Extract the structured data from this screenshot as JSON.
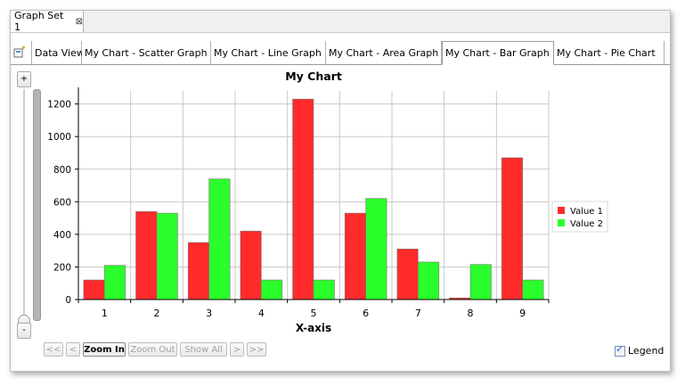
{
  "outer_tab": {
    "label": "Graph Set 1",
    "close": "⊠"
  },
  "inner_tabs": [
    {
      "label": "Data View",
      "active": false
    },
    {
      "label": "My Chart - Scatter Graph",
      "active": false
    },
    {
      "label": "My Chart - Line Graph",
      "active": false
    },
    {
      "label": "My Chart - Area Graph",
      "active": false
    },
    {
      "label": "My Chart - Bar Graph",
      "active": true,
      "close": "⊠"
    },
    {
      "label": "My Chart - Pie Chart",
      "active": false
    }
  ],
  "zoom": {
    "plus": "+",
    "minus": "-"
  },
  "nav": {
    "first": "<<",
    "prev": "<",
    "zoom_in": "Zoom In",
    "zoom_out": "Zoom Out",
    "show_all": "Show All",
    "next": ">",
    "last": ">>"
  },
  "legend_toggle": {
    "label": "Legend",
    "checked": true
  },
  "colors": {
    "value1": "#ff2b2b",
    "value2": "#2bff2b"
  },
  "chart_data": {
    "type": "bar",
    "title": "My Chart",
    "xlabel": "X-axis",
    "ylabel": "",
    "categories": [
      "1",
      "2",
      "3",
      "4",
      "5",
      "6",
      "7",
      "8",
      "9"
    ],
    "series": [
      {
        "name": "Value 1",
        "values": [
          120,
          540,
          350,
          420,
          1230,
          530,
          310,
          10,
          870
        ]
      },
      {
        "name": "Value 2",
        "values": [
          210,
          530,
          740,
          120,
          120,
          620,
          230,
          215,
          120
        ]
      }
    ],
    "ylim": [
      0,
      1280
    ],
    "yticks": [
      0,
      200,
      400,
      600,
      800,
      1000,
      1200
    ],
    "grid": true,
    "legend_position": "right"
  }
}
